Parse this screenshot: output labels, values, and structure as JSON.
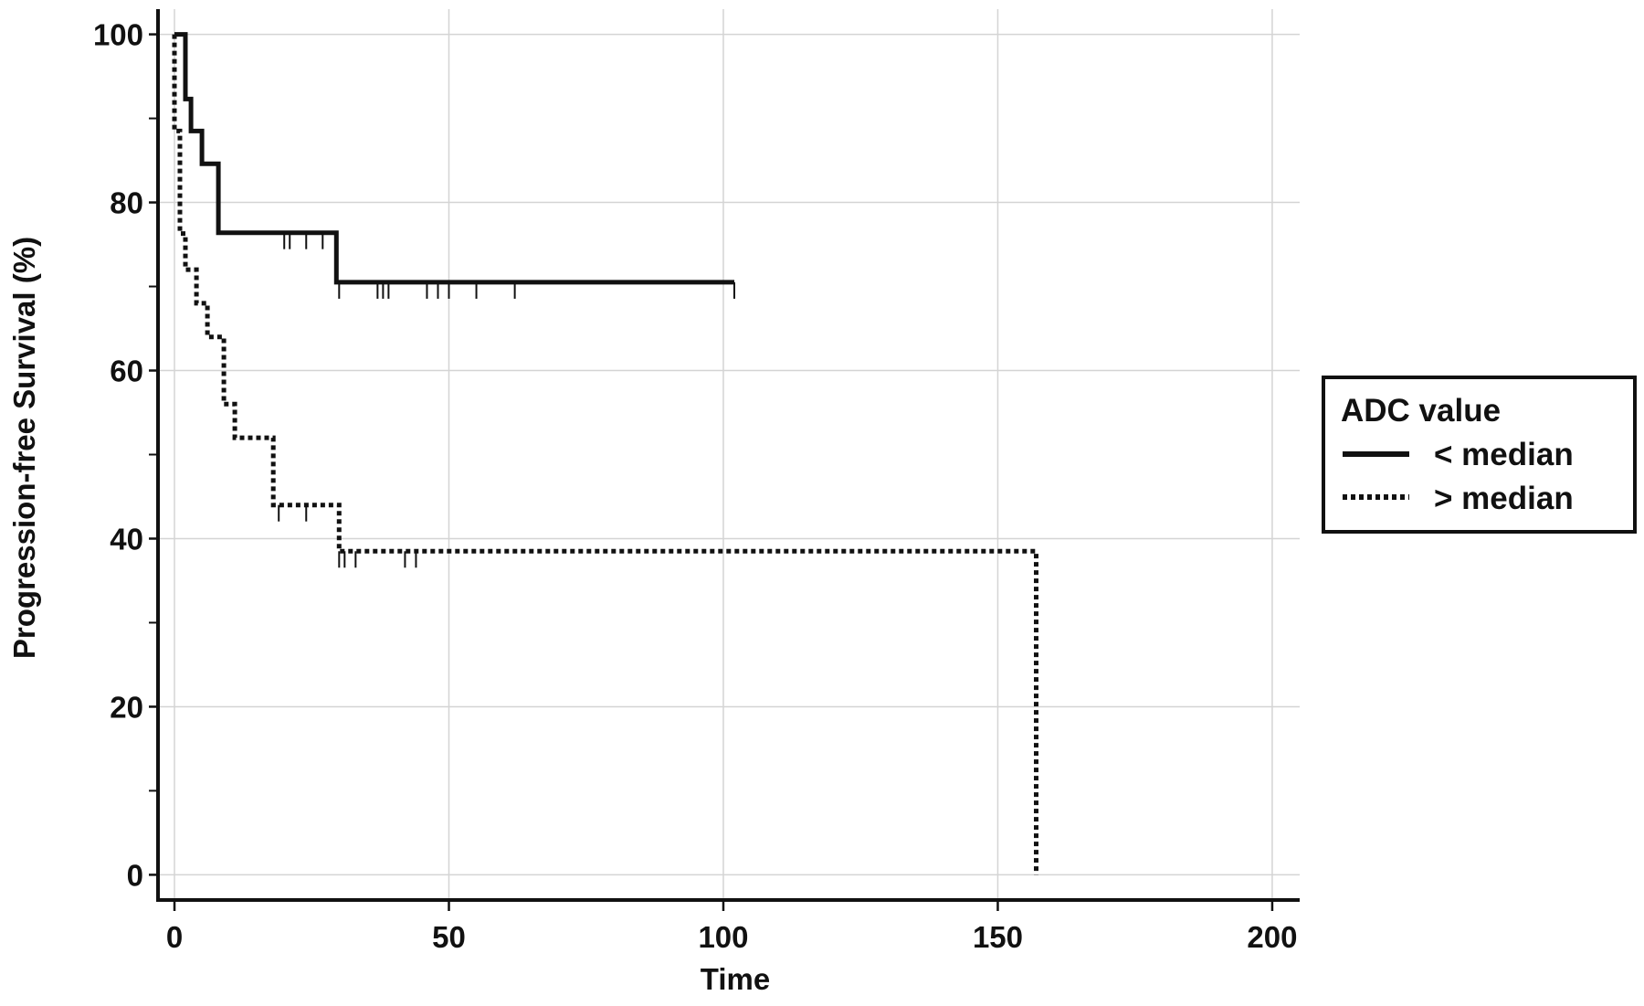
{
  "chart_data": {
    "type": "line",
    "subtype": "kaplan-meier",
    "xlabel": "Time",
    "ylabel": "Progression-free Survival (%)",
    "xlim": [
      -3,
      205
    ],
    "ylim": [
      -3,
      103
    ],
    "xticks": [
      0,
      50,
      100,
      150,
      200
    ],
    "yticks": [
      0,
      20,
      40,
      60,
      80,
      100
    ],
    "grid": true,
    "legend": {
      "title": "ADC value",
      "placement": "right"
    },
    "series": [
      {
        "name": "< median",
        "style": "solid",
        "color": "#111111",
        "steps": [
          [
            0,
            100
          ],
          [
            2,
            100
          ],
          [
            2,
            92.3
          ],
          [
            3,
            92.3
          ],
          [
            3,
            88.5
          ],
          [
            5,
            88.5
          ],
          [
            5,
            84.6
          ],
          [
            8,
            84.6
          ],
          [
            8,
            76.4
          ],
          [
            29.5,
            76.4
          ],
          [
            29.5,
            70.5
          ],
          [
            102,
            70.5
          ]
        ],
        "censored": [
          [
            20,
            76.4
          ],
          [
            21,
            76.4
          ],
          [
            24,
            76.4
          ],
          [
            27,
            76.4
          ],
          [
            30,
            70.5
          ],
          [
            37,
            70.5
          ],
          [
            38,
            70.5
          ],
          [
            39,
            70.5
          ],
          [
            46,
            70.5
          ],
          [
            48,
            70.5
          ],
          [
            50,
            70.5
          ],
          [
            55,
            70.5
          ],
          [
            62,
            70.5
          ],
          [
            102,
            70.5
          ]
        ]
      },
      {
        "name": "> median",
        "style": "dotted",
        "color": "#111111",
        "steps": [
          [
            0,
            100
          ],
          [
            0,
            88.5
          ],
          [
            1,
            88.5
          ],
          [
            1,
            76.3
          ],
          [
            2,
            76.3
          ],
          [
            2,
            72
          ],
          [
            4,
            72
          ],
          [
            4,
            68
          ],
          [
            6,
            68
          ],
          [
            6,
            64
          ],
          [
            9,
            64
          ],
          [
            9,
            56
          ],
          [
            11,
            56
          ],
          [
            11,
            52
          ],
          [
            18,
            52
          ],
          [
            18,
            44
          ],
          [
            30,
            44
          ],
          [
            30,
            38.5
          ],
          [
            157,
            38.5
          ],
          [
            157,
            0
          ]
        ],
        "censored": [
          [
            19,
            44
          ],
          [
            24,
            44
          ],
          [
            30,
            38.5
          ],
          [
            31,
            38.5
          ],
          [
            33,
            38.5
          ],
          [
            42,
            38.5
          ],
          [
            44,
            38.5
          ]
        ]
      }
    ]
  }
}
